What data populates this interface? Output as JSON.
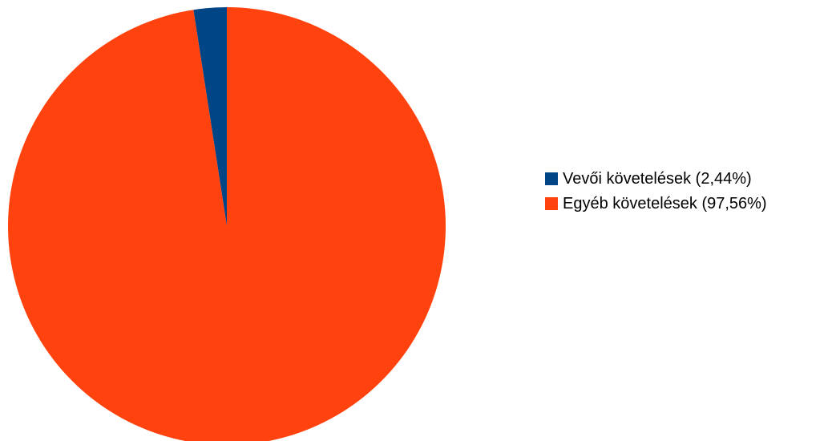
{
  "chart_data": {
    "type": "pie",
    "title": "",
    "slices": [
      {
        "label": "Vevői követelések (2,44%)",
        "value": 2.44,
        "color": "#004586"
      },
      {
        "label": "Egyéb követelések (97,56%)",
        "value": 97.56,
        "color": "#ff420e"
      }
    ],
    "start_angle_deg": 0,
    "direction": "counterclockwise",
    "legend_position": "right",
    "data_labels": false
  }
}
